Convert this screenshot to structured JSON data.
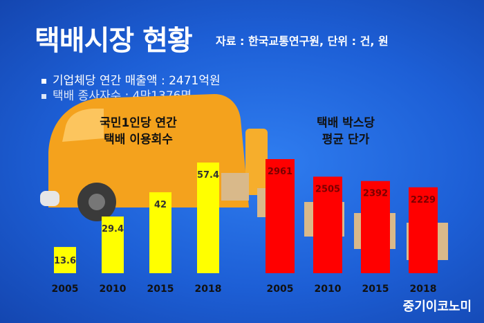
{
  "header": {
    "title": "택배시장 현황",
    "source": "자료 : 한국교통연구원, 단위 : 건, 원"
  },
  "bullets": [
    "기업체당 연간 매출액 : 2471억원",
    "택배 종사자수 : 4만1376명"
  ],
  "logo": "중기이코노미",
  "colors": {
    "left_bar": "#ffff00",
    "right_bar": "#ff0000",
    "background": "#1d5fd6"
  },
  "chart_data": [
    {
      "type": "bar",
      "title": "국민1인당 연간 택배 이용회수",
      "title_lines": [
        "국민1인당 연간",
        "택배 이용회수"
      ],
      "categories": [
        "2005",
        "2010",
        "2015",
        "2018"
      ],
      "values": [
        13.6,
        29.4,
        42,
        57.4
      ],
      "ylim": [
        0,
        57.4
      ],
      "grid": false,
      "legend": "none"
    },
    {
      "type": "bar",
      "title": "택배 박스당 평균 단가",
      "title_lines": [
        "택배 박스당",
        "평균 단가"
      ],
      "categories": [
        "2005",
        "2010",
        "2015",
        "2018"
      ],
      "values": [
        2961,
        2505,
        2392,
        2229
      ],
      "ylim": [
        0,
        2961
      ],
      "grid": false,
      "legend": "none"
    }
  ]
}
